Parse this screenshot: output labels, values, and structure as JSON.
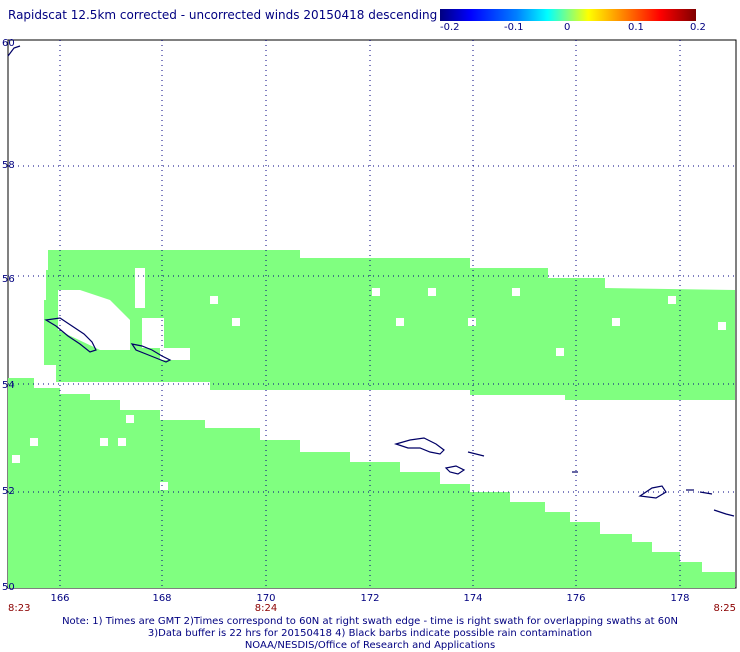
{
  "title": "Rapidscat 12.5km corrected - uncorrected winds 20150418 descending",
  "colorbar": {
    "labels": [
      "-0.2",
      "-0.1",
      "0",
      "0.1",
      "0.2"
    ],
    "colors": [
      "#00007f",
      "#0000ff",
      "#00ffff",
      "#80ff80",
      "#ffff00",
      "#ff0000",
      "#7f0000"
    ]
  },
  "map": {
    "lon_range": [
      165.3,
      178.8
    ],
    "lat_range": [
      50,
      60
    ],
    "lon_ticks": [
      "166",
      "168",
      "170",
      "172",
      "174",
      "176",
      "178"
    ],
    "lat_ticks": [
      "50",
      "52",
      "54",
      "56",
      "58",
      "60"
    ],
    "time_labels": [
      "8:23",
      "8:24",
      "8:25"
    ],
    "swath_color": "#80ff80",
    "coast_color": "#000066",
    "grid": "dotted"
  },
  "notes": [
    "Note: 1) Times are GMT 2)Times correspond to 60N at right swath edge - time is right swath for overlapping swaths at 60N",
    "3)Data buffer is 22 hrs for 20150418 4) Black barbs indicate possible rain contamination",
    "NOAA/NESDIS/Office of Research and Applications"
  ]
}
